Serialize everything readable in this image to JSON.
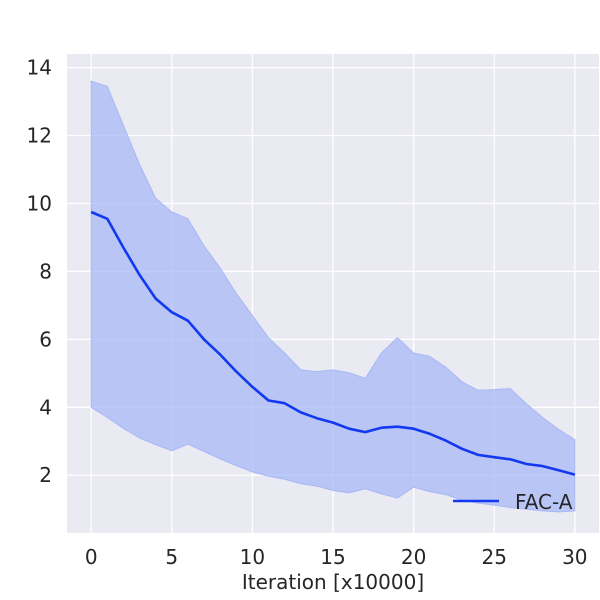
{
  "chart_data": {
    "type": "line",
    "title": "",
    "xlabel": "Iteration [x10000]",
    "ylabel": "",
    "xlim": [
      -1.5,
      31.5
    ],
    "ylim": [
      0.3,
      14.4
    ],
    "grid": true,
    "legend_position": "lower-right",
    "x_ticks": [
      0,
      5,
      10,
      15,
      20,
      25,
      30
    ],
    "x_tick_labels": [
      "0",
      "5",
      "10",
      "15",
      "20",
      "25",
      "30"
    ],
    "y_ticks": [
      2,
      4,
      6,
      8,
      10,
      12,
      14
    ],
    "y_tick_labels": [
      "2",
      "4",
      "6",
      "8",
      "10",
      "12",
      "14"
    ],
    "colors": {
      "plot_background": "#eaeaf2",
      "grid": "#ffffff",
      "line": "#1238f0",
      "band": "#a8b8f5"
    },
    "x": [
      0,
      1,
      2,
      3,
      4,
      5,
      6,
      7,
      8,
      9,
      10,
      11,
      12,
      13,
      14,
      15,
      16,
      17,
      18,
      19,
      20,
      21,
      22,
      23,
      24,
      25,
      26,
      27,
      28,
      29,
      30
    ],
    "series": [
      {
        "name": "FAC-A",
        "values": [
          9.75,
          9.55,
          8.7,
          7.9,
          7.2,
          6.8,
          6.55,
          6.0,
          5.55,
          5.05,
          4.6,
          4.2,
          4.12,
          3.85,
          3.68,
          3.55,
          3.37,
          3.27,
          3.4,
          3.43,
          3.37,
          3.22,
          3.02,
          2.78,
          2.6,
          2.53,
          2.47,
          2.33,
          2.27,
          2.15,
          2.02
        ],
        "upper": [
          13.6,
          13.45,
          12.3,
          11.15,
          10.15,
          9.75,
          9.55,
          8.75,
          8.1,
          7.35,
          6.7,
          6.05,
          5.6,
          5.1,
          5.05,
          5.1,
          5.02,
          4.85,
          5.6,
          6.05,
          5.6,
          5.5,
          5.18,
          4.75,
          4.5,
          4.52,
          4.55,
          4.1,
          3.7,
          3.35,
          3.05
        ],
        "lower": [
          4.0,
          3.7,
          3.38,
          3.1,
          2.9,
          2.72,
          2.92,
          2.7,
          2.48,
          2.28,
          2.1,
          1.97,
          1.88,
          1.75,
          1.68,
          1.55,
          1.48,
          1.6,
          1.45,
          1.33,
          1.65,
          1.52,
          1.43,
          1.27,
          1.18,
          1.12,
          1.05,
          1.0,
          0.95,
          0.92,
          0.95
        ]
      }
    ]
  }
}
